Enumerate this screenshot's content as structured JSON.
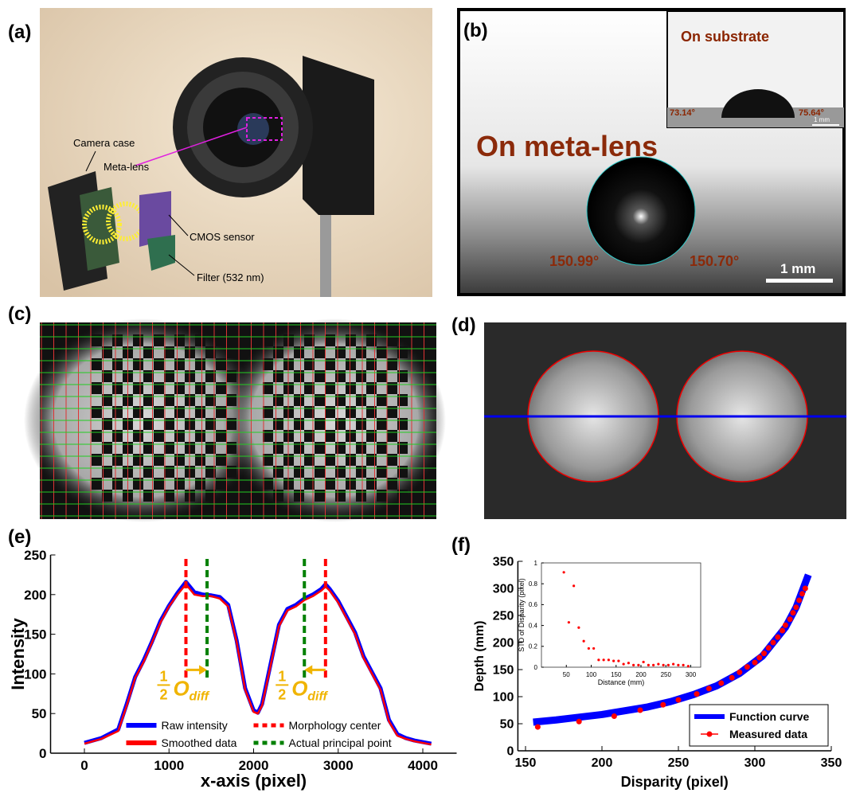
{
  "panel_labels": [
    "(a)",
    "(b)",
    "(c)",
    "(d)",
    "(e)",
    "(f)"
  ],
  "photo_a": {
    "labels": [
      "Camera case",
      "Meta-lens",
      "CMOS sensor",
      "Filter (532 nm)"
    ]
  },
  "photo_b": {
    "inset_title": "On substrate",
    "inset_left_angle": "73.14°",
    "inset_right_angle": "75.64°",
    "inset_scale": "1 mm",
    "title": "On meta-lens",
    "left_angle": "150.99°",
    "right_angle": "150.70°",
    "scale": "1 mm"
  },
  "chart_data": [
    {
      "type": "line",
      "xlabel": "x-axis (pixel)",
      "ylabel": "Intensity",
      "xlim": [
        -400,
        4400
      ],
      "ylim": [
        0,
        250
      ],
      "xticks": [
        0,
        1000,
        2000,
        3000,
        4000
      ],
      "yticks": [
        0,
        50,
        100,
        150,
        200,
        250
      ],
      "legend": "lower center",
      "x": [
        0,
        200,
        400,
        500,
        600,
        700,
        800,
        900,
        1000,
        1100,
        1200,
        1300,
        1400,
        1500,
        1600,
        1700,
        1800,
        1900,
        2000,
        2050,
        2100,
        2200,
        2300,
        2400,
        2500,
        2600,
        2700,
        2800,
        2850,
        2900,
        3000,
        3100,
        3200,
        3300,
        3400,
        3500,
        3600,
        3700,
        3800,
        3900,
        4000,
        4100
      ],
      "series": [
        {
          "name": "Raw intensity",
          "color": "#0000ff",
          "values": [
            13,
            19,
            30,
            62,
            96,
            117,
            141,
            167,
            186,
            202,
            216,
            203,
            200,
            199,
            197,
            187,
            142,
            82,
            54,
            51,
            62,
            112,
            162,
            182,
            187,
            195,
            200,
            207,
            213,
            207,
            192,
            172,
            152,
            122,
            102,
            82,
            42,
            24,
            19,
            16,
            14,
            12
          ]
        },
        {
          "name": "Smoothed data",
          "color": "#ff0000",
          "values": [
            12,
            18,
            28,
            60,
            95,
            115,
            140,
            165,
            185,
            200,
            213,
            200,
            198,
            198,
            195,
            185,
            140,
            80,
            52,
            50,
            60,
            110,
            160,
            180,
            185,
            193,
            198,
            205,
            210,
            205,
            190,
            170,
            150,
            120,
            100,
            80,
            40,
            22,
            18,
            15,
            13,
            11
          ]
        }
      ],
      "vlines": [
        {
          "name": "Morphology center",
          "color": "#ff0000",
          "x": [
            1200,
            2850
          ]
        },
        {
          "name": "Actual principal point",
          "color": "#008000",
          "x": [
            1450,
            2600
          ]
        }
      ],
      "annotations": [
        {
          "numerator": "1",
          "denominator": "2",
          "symbol": "O",
          "subscript": "diff"
        },
        {
          "numerator": "1",
          "denominator": "2",
          "symbol": "O",
          "subscript": "diff"
        }
      ]
    },
    {
      "type": "line",
      "xlabel": "Disparity (pixel)",
      "ylabel": "Depth (mm)",
      "xlim": [
        145,
        350
      ],
      "ylim": [
        0,
        350
      ],
      "xticks": [
        150,
        200,
        250,
        300,
        350
      ],
      "yticks": [
        0,
        50,
        100,
        150,
        200,
        250,
        300,
        350
      ],
      "legend": "lower right",
      "series": [
        {
          "name": "Function curve",
          "color": "#0000ff",
          "style": "line",
          "x": [
            155,
            170,
            185,
            200,
            215,
            230,
            245,
            260,
            275,
            290,
            305,
            320,
            327,
            335
          ],
          "values": [
            53,
            57,
            62,
            67,
            74,
            81,
            91,
            104,
            120,
            143,
            175,
            228,
            265,
            325
          ]
        },
        {
          "name": "Measured data",
          "color": "#ff0000",
          "style": "points",
          "x": [
            158,
            185,
            208,
            225,
            240,
            250,
            262,
            270,
            278,
            285,
            290,
            295,
            300,
            303,
            306,
            309,
            312,
            315,
            318,
            320,
            323,
            325,
            327,
            329,
            331,
            333
          ],
          "values": [
            44,
            54,
            64,
            75,
            85,
            94,
            105,
            115,
            125,
            135,
            145,
            155,
            163,
            172,
            180,
            190,
            200,
            210,
            222,
            232,
            243,
            255,
            265,
            278,
            290,
            300
          ]
        }
      ]
    },
    {
      "type": "scatter",
      "xlabel": "Distance (mm)",
      "ylabel": "STD of Disparity (pixel)",
      "xlim": [
        0,
        320
      ],
      "ylim": [
        0,
        1
      ],
      "xticks": [
        50,
        100,
        150,
        200,
        250,
        300
      ],
      "yticks": [
        0,
        0.2,
        0.4,
        0.6,
        0.8,
        1
      ],
      "series": [
        {
          "color": "#ff0000",
          "style": "points",
          "x": [
            45,
            55,
            65,
            75,
            85,
            95,
            105,
            115,
            125,
            135,
            145,
            155,
            165,
            175,
            185,
            195,
            205,
            215,
            225,
            235,
            245,
            255,
            265,
            275,
            285,
            295
          ],
          "values": [
            0.91,
            0.43,
            0.78,
            0.38,
            0.25,
            0.18,
            0.18,
            0.07,
            0.07,
            0.07,
            0.06,
            0.06,
            0.03,
            0.04,
            0.02,
            0.02,
            0.05,
            0.02,
            0.02,
            0.03,
            0.02,
            0.02,
            0.03,
            0.02,
            0.02,
            0.01
          ]
        }
      ]
    }
  ]
}
